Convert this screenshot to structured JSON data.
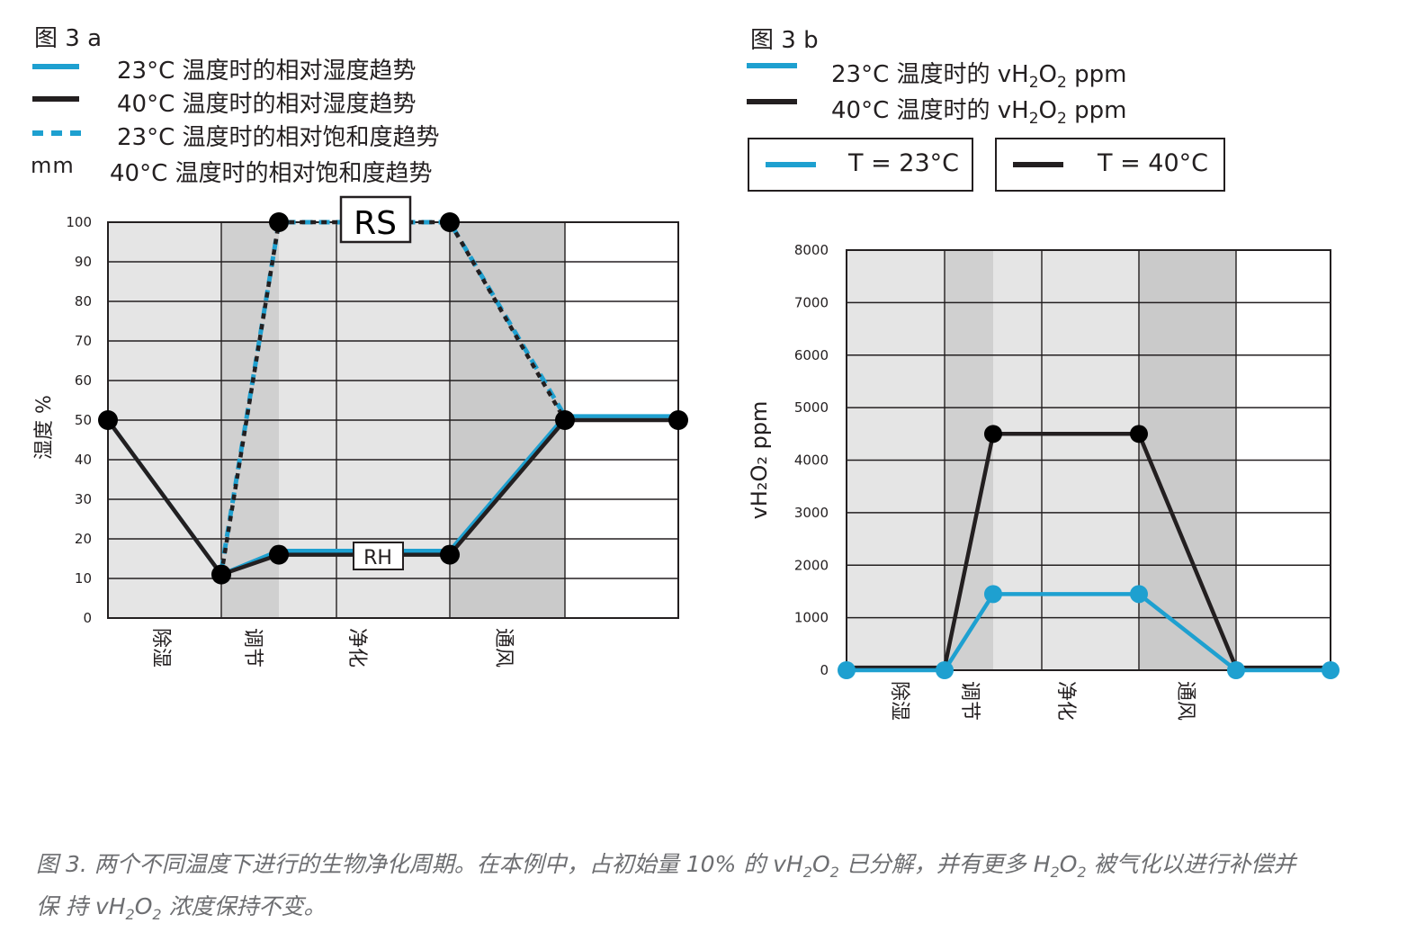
{
  "figure_a": {
    "title": "图 3 a",
    "legend": [
      {
        "label": "23°C 温度时的相对湿度趋势",
        "color": "#1ea0d0",
        "style": "solid"
      },
      {
        "label": "40°C 温度时的相对湿度趋势",
        "color": "#231f20",
        "style": "solid"
      },
      {
        "label": "23°C 温度时的相对饱和度趋势",
        "color": "#1ea0d0",
        "style": "dashed"
      },
      {
        "label": "40°C 温度时的相对饱和度趋势",
        "color": "#231f20",
        "style": "dotted",
        "marker_text": "mm"
      }
    ]
  },
  "figure_b": {
    "title": "图 3 b",
    "legend": [
      {
        "label_prefix": "23°C 温度时的 vH",
        "sub1": "2",
        "mid": "O",
        "sub2": "2",
        "suffix": " ppm",
        "color": "#1ea0d0"
      },
      {
        "label_prefix": "40°C 温度时的 vH",
        "sub1": "2",
        "mid": "O",
        "sub2": "2",
        "suffix": " ppm",
        "color": "#231f20"
      }
    ],
    "temp_boxes": [
      {
        "label": "T = 23°C",
        "color": "#1ea0d0"
      },
      {
        "label": "T = 40°C",
        "color": "#231f20"
      }
    ]
  },
  "chart_data": [
    {
      "type": "line",
      "title": "",
      "ylabel": "湿度 %",
      "ylim": [
        0,
        100
      ],
      "yticks": [
        0,
        10,
        20,
        30,
        40,
        50,
        60,
        70,
        80,
        90,
        100
      ],
      "phases": [
        "除湿",
        "调节",
        "净化",
        "通风"
      ],
      "annotations": [
        "RS",
        "RH"
      ],
      "series": [
        {
          "name": "23°C 温度时的相对湿度趋势",
          "color": "#1ea0d0",
          "style": "solid",
          "points": [
            [
              0,
              50
            ],
            [
              1,
              11
            ],
            [
              1.5,
              17
            ],
            [
              3,
              17
            ],
            [
              4,
              51
            ],
            [
              5,
              51
            ]
          ]
        },
        {
          "name": "40°C 温度时的相对湿度趋势",
          "color": "#231f20",
          "style": "solid",
          "points": [
            [
              0,
              50
            ],
            [
              1,
              11
            ],
            [
              1.5,
              16
            ],
            [
              3,
              16
            ],
            [
              4,
              50
            ],
            [
              5,
              50
            ]
          ]
        },
        {
          "name": "23°C 温度时的相对饱和度趋势",
          "color": "#1ea0d0",
          "style": "dashed",
          "points": [
            [
              1,
              12
            ],
            [
              1.5,
              100
            ],
            [
              3,
              100
            ],
            [
              4,
              51
            ]
          ]
        },
        {
          "name": "40°C 温度时的相对饱和度趋势",
          "color": "#231f20",
          "style": "dotted",
          "points": [
            [
              1,
              11
            ],
            [
              1.5,
              100
            ],
            [
              3,
              100
            ],
            [
              4,
              50
            ]
          ]
        }
      ],
      "markers": [
        [
          0,
          50
        ],
        [
          1,
          11
        ],
        [
          1.5,
          16
        ],
        [
          3,
          16
        ],
        [
          4,
          50
        ],
        [
          5,
          50
        ],
        [
          1.5,
          100
        ],
        [
          3,
          100
        ]
      ]
    },
    {
      "type": "line",
      "title": "",
      "ylabel": "vH₂O₂ ppm",
      "ylim": [
        0,
        8000
      ],
      "yticks": [
        0,
        1000,
        2000,
        3000,
        4000,
        5000,
        6000,
        7000,
        8000
      ],
      "phases": [
        "除湿",
        "调节",
        "净化",
        "通风"
      ],
      "series": [
        {
          "name": "T = 40°C",
          "color": "#231f20",
          "points": [
            [
              0,
              50
            ],
            [
              1,
              50
            ],
            [
              1.5,
              4500
            ],
            [
              3,
              4500
            ],
            [
              4,
              50
            ],
            [
              5,
              50
            ]
          ]
        },
        {
          "name": "T = 23°C",
          "color": "#1ea0d0",
          "points": [
            [
              0,
              0
            ],
            [
              1,
              0
            ],
            [
              1.5,
              1450
            ],
            [
              3,
              1450
            ],
            [
              4,
              0
            ],
            [
              5,
              0
            ]
          ]
        }
      ]
    }
  ],
  "caption": {
    "part1": "图 3.   两个不同温度下进行的生物净化周期。在本例中，占初始量  10%  的 vH",
    "sub1": "2",
    "part2": "O",
    "sub2": "2",
    "part3": "  已分解，并有更多 H",
    "sub3": "2",
    "part4": "O",
    "sub4": "2",
    "part5": "  被气化以进行补偿并",
    "line2a": "保 持 vH",
    "sub5": "2",
    "line2b": "O",
    "sub6": "2",
    "line2c": "  浓度保持不变。"
  }
}
